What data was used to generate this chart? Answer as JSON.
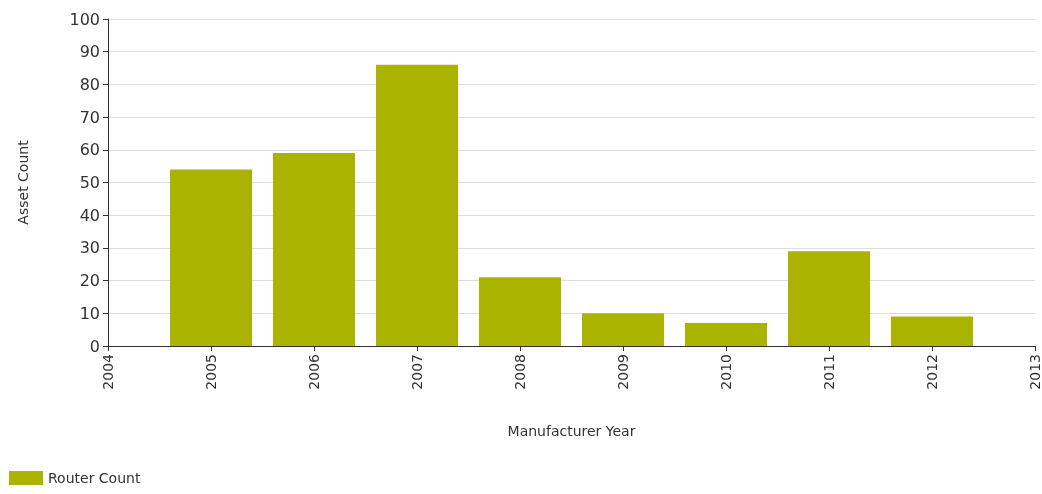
{
  "chart_data": {
    "type": "bar",
    "xlabel": "Manufacturer Year",
    "ylabel": "Asset Count",
    "x": [
      2005,
      2006,
      2007,
      2008,
      2009,
      2010,
      2011,
      2012
    ],
    "series": [
      {
        "name": "Router Count",
        "color": "#aab400",
        "values": [
          54,
          59,
          86,
          21,
          10,
          7,
          29,
          9
        ]
      }
    ],
    "xlim": [
      2004,
      2013
    ],
    "xticks": [
      2004,
      2005,
      2006,
      2007,
      2008,
      2009,
      2010,
      2011,
      2012,
      2013
    ],
    "ylim": [
      0,
      100
    ],
    "yticks": [
      0,
      10,
      20,
      30,
      40,
      50,
      60,
      70,
      80,
      90,
      100
    ],
    "grid": "y",
    "legend": "bottom left"
  }
}
